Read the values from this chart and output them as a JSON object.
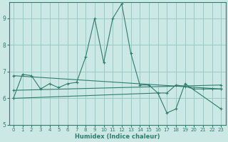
{
  "xlabel": "Humidex (Indice chaleur)",
  "bg_color": "#cce8e4",
  "grid_color": "#99ccc6",
  "line_color": "#2e7d6e",
  "xlim": [
    -0.5,
    23.5
  ],
  "ylim": [
    5,
    9.6
  ],
  "yticks": [
    5,
    6,
    7,
    8,
    9
  ],
  "xticks": [
    0,
    1,
    2,
    3,
    4,
    5,
    6,
    7,
    8,
    9,
    10,
    11,
    12,
    13,
    14,
    15,
    16,
    17,
    18,
    19,
    20,
    21,
    22,
    23
  ],
  "series1_x": [
    0,
    1,
    2,
    3,
    4,
    5,
    6,
    7,
    8,
    9,
    10,
    11,
    12,
    13,
    14,
    15,
    16,
    17,
    18,
    19,
    20,
    21,
    22,
    23
  ],
  "series1_y": [
    6.0,
    6.9,
    6.85,
    6.35,
    6.55,
    6.4,
    6.55,
    6.6,
    7.55,
    9.0,
    7.35,
    9.0,
    9.55,
    7.7,
    6.5,
    6.5,
    6.2,
    6.2,
    6.5,
    6.45,
    6.35,
    6.35,
    6.35,
    6.35
  ],
  "series2_x": [
    0,
    23
  ],
  "series2_y": [
    6.85,
    6.35
  ],
  "series3_x": [
    0,
    23
  ],
  "series3_y": [
    6.3,
    6.5
  ],
  "series4_x": [
    0,
    16,
    17,
    18,
    19,
    23
  ],
  "series4_y": [
    6.0,
    6.2,
    5.45,
    5.6,
    6.55,
    5.6
  ]
}
